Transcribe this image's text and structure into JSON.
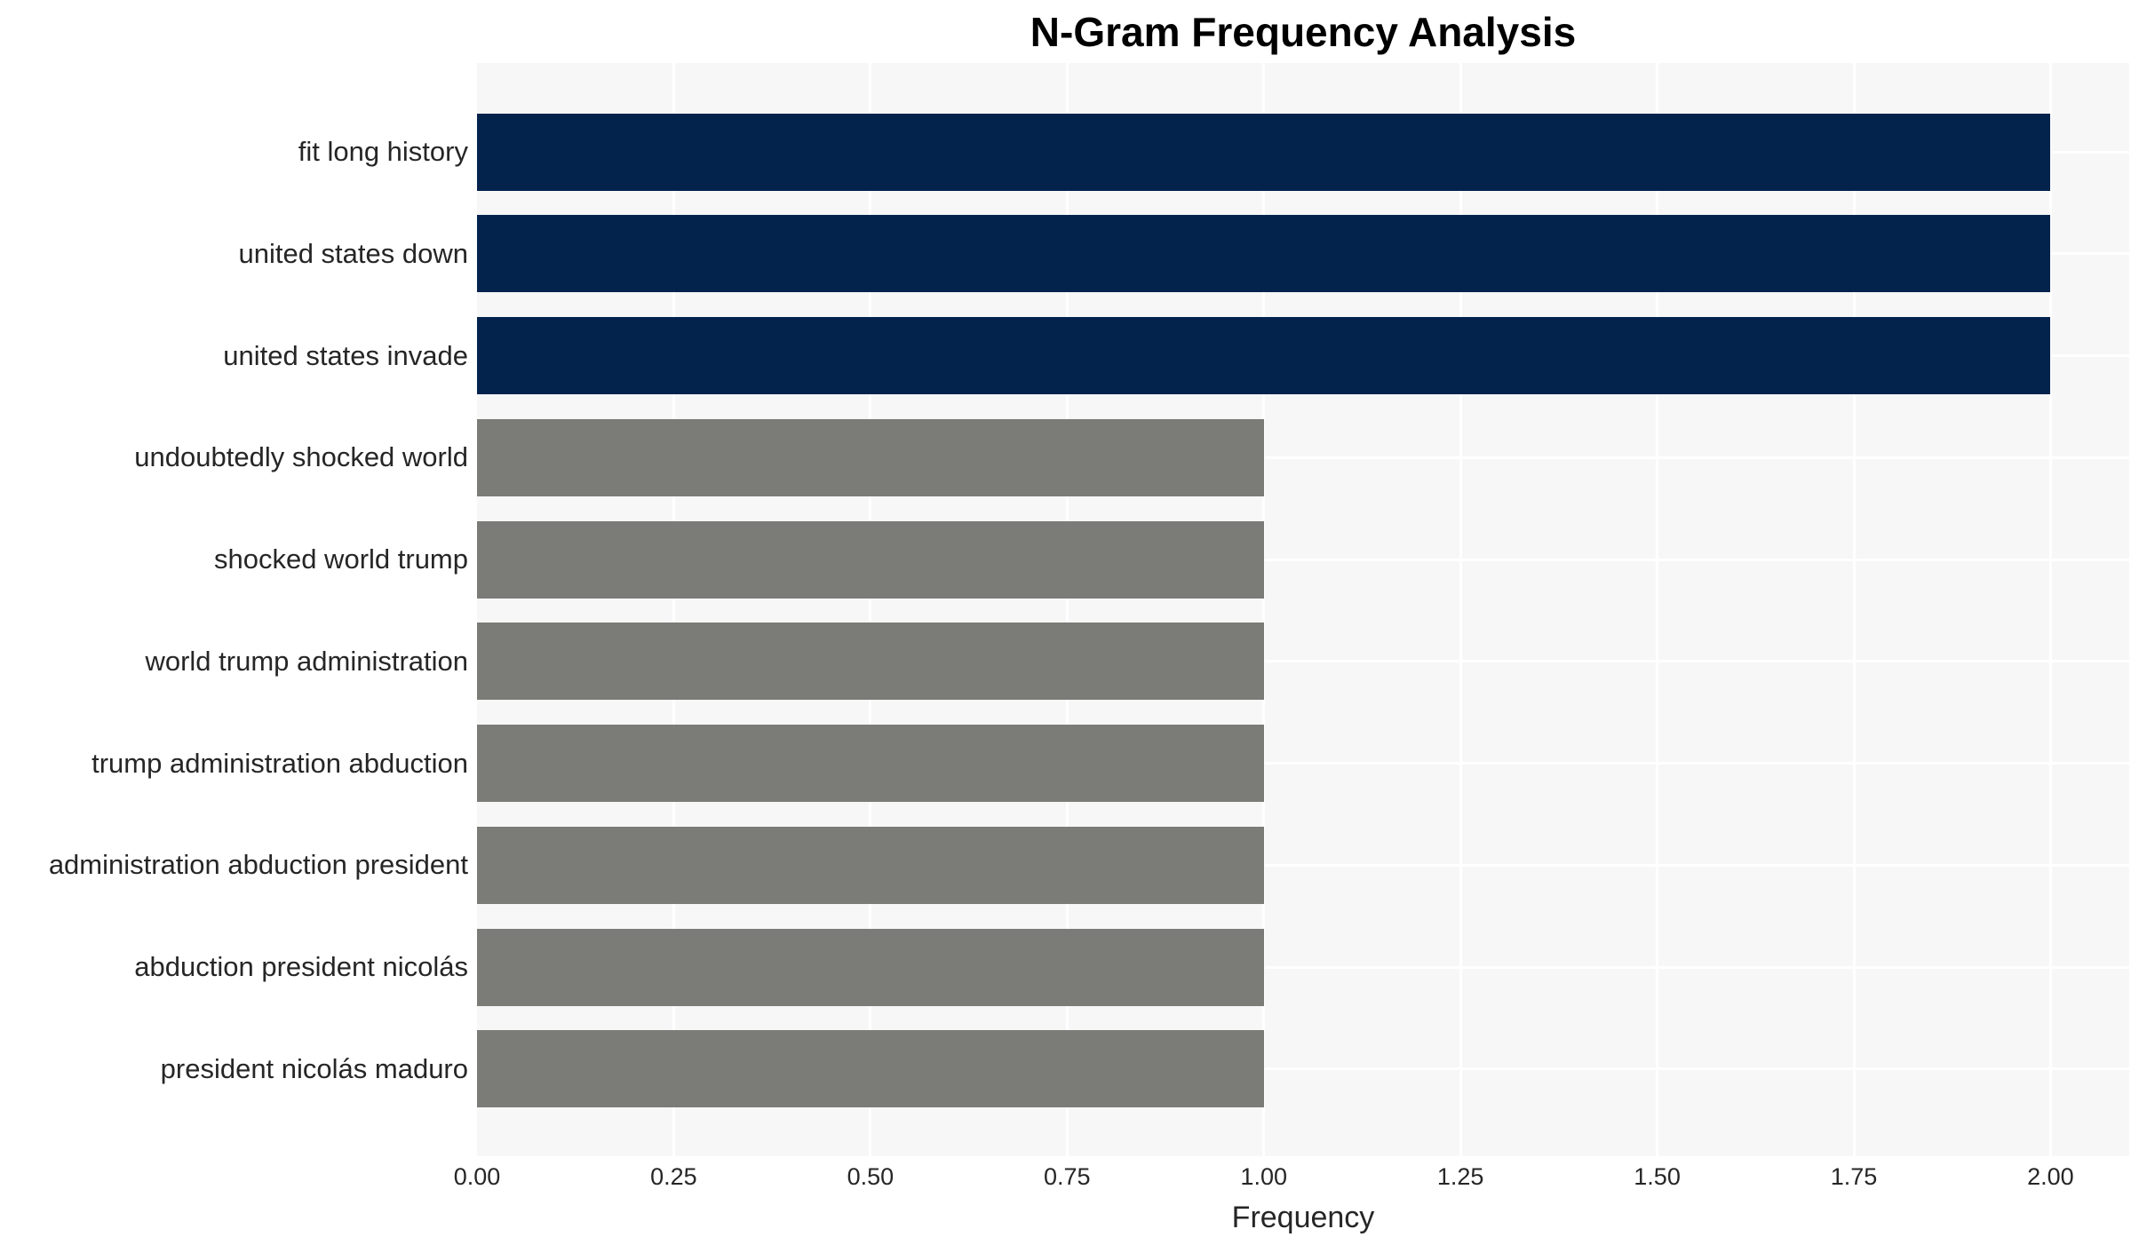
{
  "title": "N-Gram Frequency Analysis",
  "colors": {
    "bar_high": "#03234d",
    "bar_low": "#7b7b77",
    "plot_background": "#f7f7f8",
    "gridline": "#ffffff",
    "tick_text": "#262626",
    "title_text": "#000000"
  },
  "chart_data": {
    "type": "bar",
    "orientation": "horizontal",
    "title": "N-Gram Frequency Analysis",
    "xlabel": "Frequency",
    "ylabel": "",
    "categories": [
      "fit long history",
      "united states down",
      "united states invade",
      "undoubtedly shocked world",
      "shocked world trump",
      "world trump administration",
      "trump administration abduction",
      "administration abduction president",
      "abduction president nicolás",
      "president nicolás maduro"
    ],
    "values": [
      2,
      2,
      2,
      1,
      1,
      1,
      1,
      1,
      1,
      1
    ],
    "bar_colors": [
      "#03234d",
      "#03234d",
      "#03234d",
      "#7b7b77",
      "#7b7b77",
      "#7b7b77",
      "#7b7b77",
      "#7b7b77",
      "#7b7b77",
      "#7b7b77"
    ],
    "xlim": [
      0,
      2.1
    ],
    "xticks": [
      "0.00",
      "0.25",
      "0.50",
      "0.75",
      "1.00",
      "1.25",
      "1.50",
      "1.75",
      "2.00"
    ],
    "xtick_values": [
      0,
      0.25,
      0.5,
      0.75,
      1.0,
      1.25,
      1.5,
      1.75,
      2.0
    ],
    "grid": true,
    "legend": null
  }
}
